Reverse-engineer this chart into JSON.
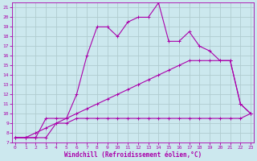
{
  "xlabel": "Windchill (Refroidissement éolien,°C)",
  "bg_color": "#cce8ee",
  "grid_color": "#b0ccd0",
  "line_color": "#aa00aa",
  "x_ticks": [
    0,
    1,
    2,
    3,
    4,
    5,
    6,
    7,
    8,
    9,
    10,
    11,
    12,
    13,
    14,
    15,
    16,
    17,
    18,
    19,
    20,
    21,
    22,
    23
  ],
  "y_ticks": [
    7,
    8,
    9,
    10,
    11,
    12,
    13,
    14,
    15,
    16,
    17,
    18,
    19,
    20,
    21
  ],
  "xlim": [
    -0.3,
    23.3
  ],
  "ylim": [
    7,
    21.5
  ],
  "series1_x": [
    0,
    1,
    2,
    3,
    4,
    5,
    6,
    7,
    8,
    9,
    10,
    11,
    12,
    13,
    14,
    15,
    16,
    17,
    18,
    19,
    20,
    21,
    22,
    23
  ],
  "series1_y": [
    7.5,
    7.5,
    7.5,
    7.5,
    9.0,
    9.0,
    9.5,
    9.5,
    9.5,
    9.5,
    9.5,
    9.5,
    9.5,
    9.5,
    9.5,
    9.5,
    9.5,
    9.5,
    9.5,
    9.5,
    9.5,
    9.5,
    9.5,
    10.0
  ],
  "series2_x": [
    0,
    1,
    2,
    3,
    4,
    5,
    6,
    7,
    8,
    9,
    10,
    11,
    12,
    13,
    14,
    15,
    16,
    17,
    18,
    19,
    20,
    21,
    22,
    23
  ],
  "series2_y": [
    7.5,
    7.5,
    8.0,
    8.5,
    9.0,
    9.5,
    10.0,
    10.5,
    11.0,
    11.5,
    12.0,
    12.5,
    13.0,
    13.5,
    14.0,
    14.5,
    15.0,
    15.5,
    15.5,
    15.5,
    15.5,
    15.5,
    11.0,
    10.0
  ],
  "series3_x": [
    0,
    1,
    2,
    3,
    4,
    5,
    6,
    7,
    8,
    9,
    10,
    11,
    12,
    13,
    14,
    15,
    16,
    17,
    18,
    19,
    20,
    21,
    22,
    23
  ],
  "series3_y": [
    7.5,
    7.5,
    7.5,
    9.5,
    9.5,
    9.5,
    12.0,
    16.0,
    19.0,
    19.0,
    18.0,
    19.5,
    20.0,
    20.0,
    21.5,
    17.5,
    17.5,
    18.5,
    17.0,
    16.5,
    15.5,
    15.5,
    11.0,
    10.0
  ]
}
